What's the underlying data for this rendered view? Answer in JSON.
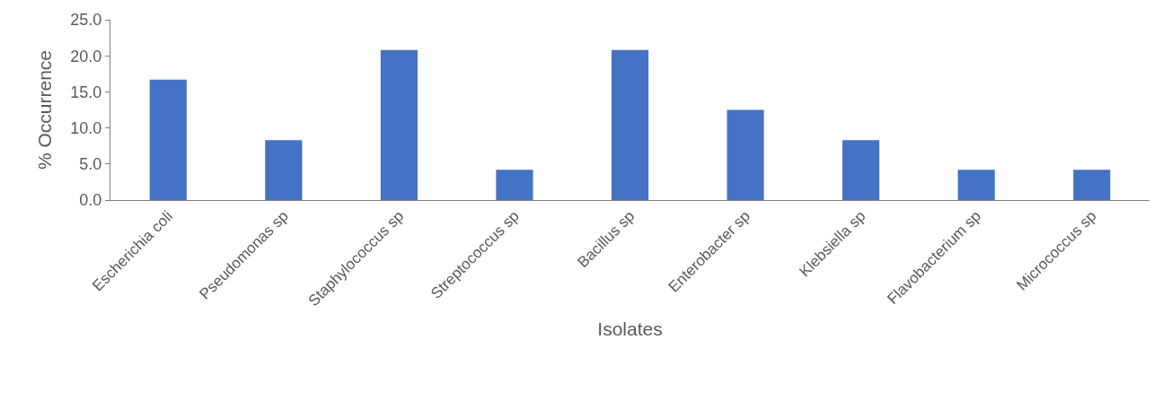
{
  "chart_data": {
    "type": "bar",
    "xlabel": "Isolates",
    "ylabel": "% Occurrence",
    "categories": [
      "Escherichia coli",
      "Pseudomonas sp",
      "Staphylococcus sp",
      "Streptococcus sp",
      "Bacillus sp",
      "Enterobacter sp",
      "Klebsiella sp",
      "Flavobacterium sp",
      "Micrococcus sp"
    ],
    "values": [
      16.7,
      8.3,
      20.8,
      4.2,
      20.8,
      12.5,
      8.3,
      4.2,
      4.2
    ],
    "color": "#4472c4",
    "ylim": [
      0,
      25
    ],
    "yticks": [
      {
        "value": 0,
        "label": "0.0"
      },
      {
        "value": 5,
        "label": "5.0"
      },
      {
        "value": 10,
        "label": "10.0"
      },
      {
        "value": 15,
        "label": "15.0"
      },
      {
        "value": 20,
        "label": "20.0"
      },
      {
        "value": 25,
        "label": "25.0"
      }
    ]
  }
}
